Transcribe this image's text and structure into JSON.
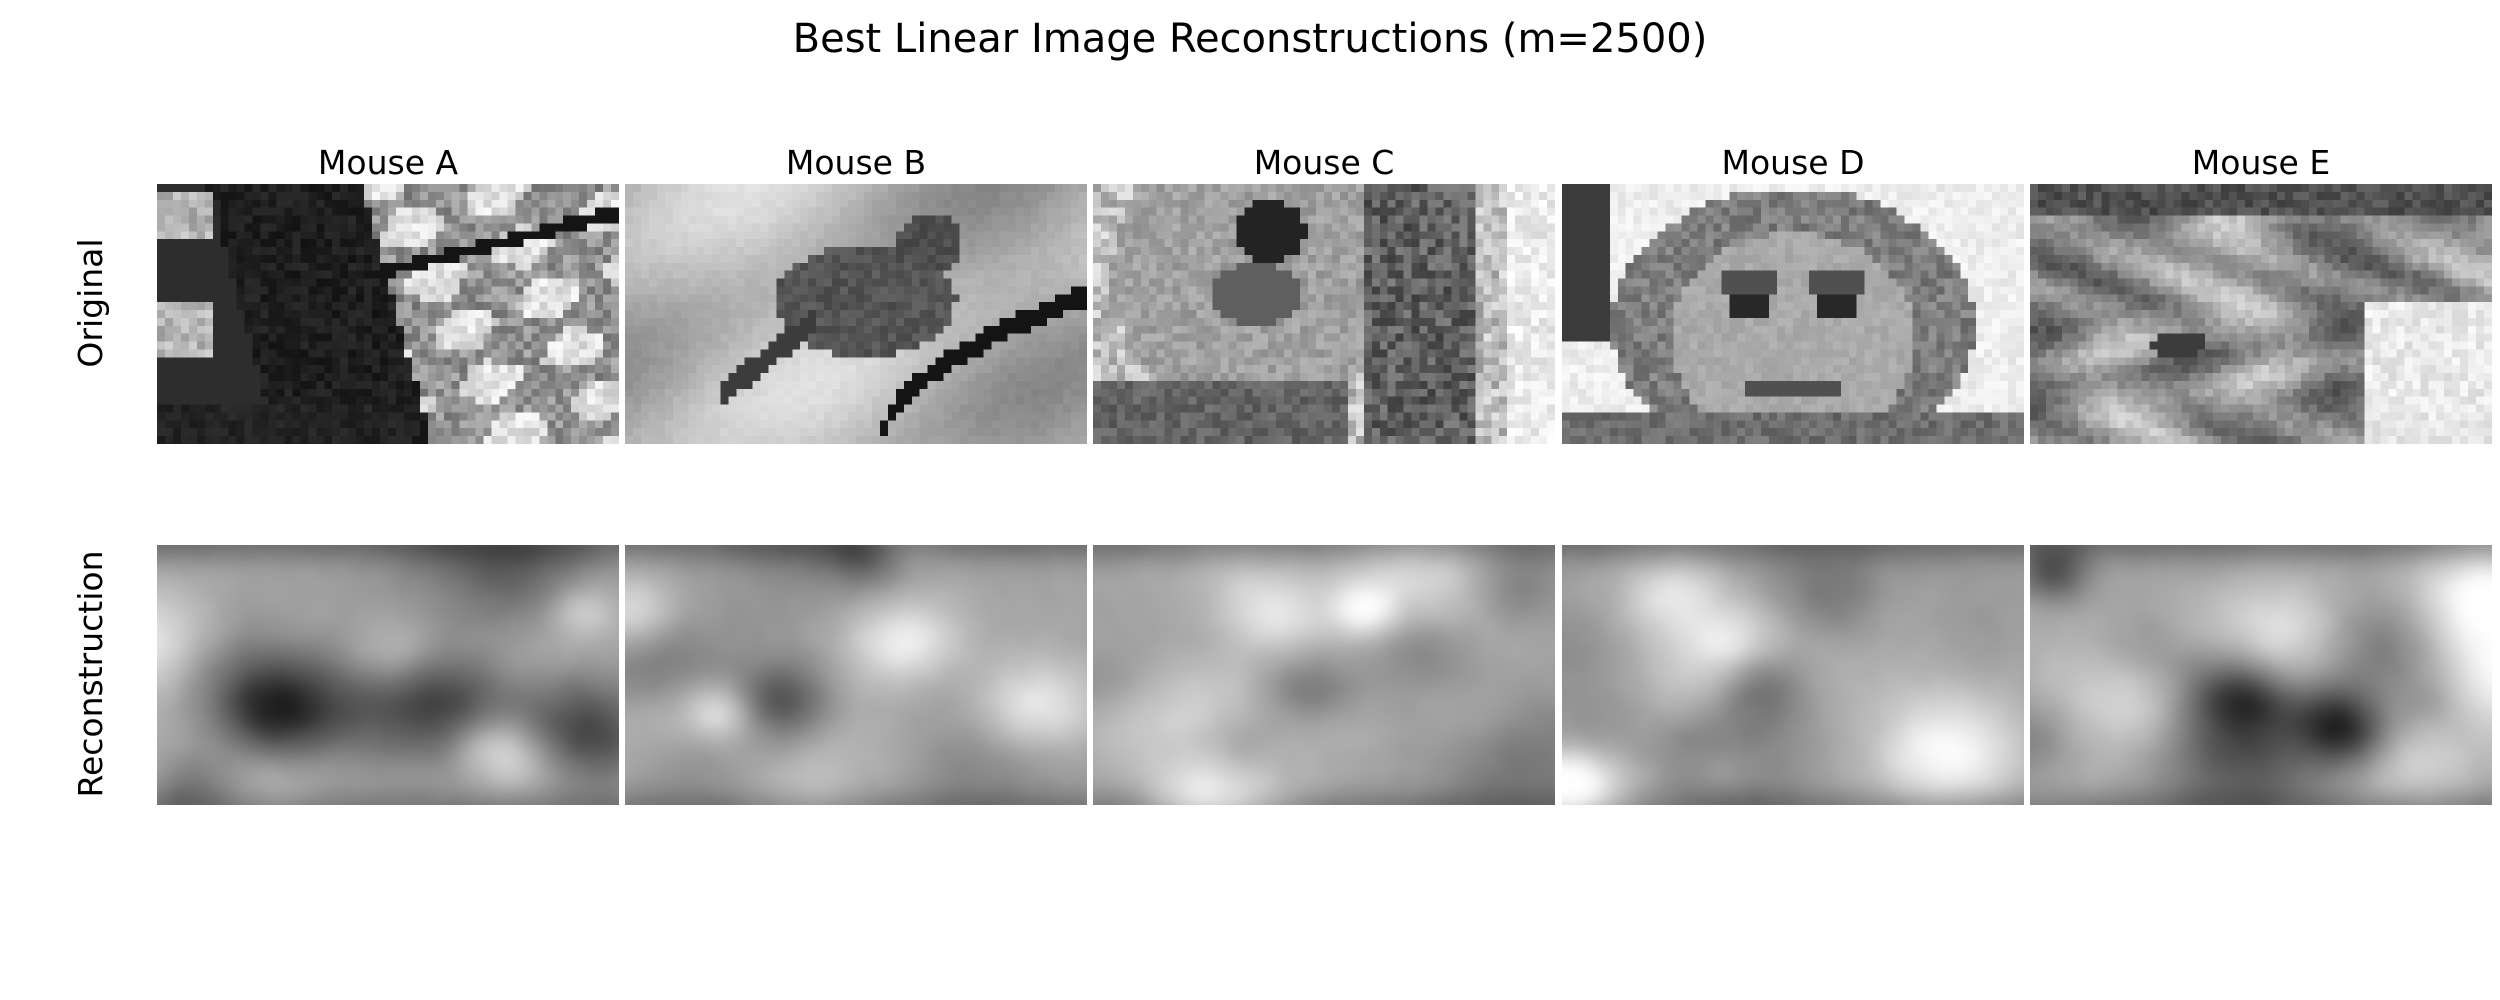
{
  "figure": {
    "title": "Best Linear Image Reconstructions (m=2500)"
  },
  "rows": [
    {
      "label": "Original"
    },
    {
      "label": "Reconstruction"
    }
  ],
  "columns": [
    {
      "label": "Mouse A",
      "original": "tree-branches-scene",
      "reconstruction": "blurred-grayscale-map"
    },
    {
      "label": "Mouse B",
      "original": "bird-on-branch-scene",
      "reconstruction": "blurred-grayscale-map"
    },
    {
      "label": "Mouse C",
      "original": "koala-scene",
      "reconstruction": "blurred-grayscale-map"
    },
    {
      "label": "Mouse D",
      "original": "child-in-hood-portrait",
      "reconstruction": "blurred-grayscale-map"
    },
    {
      "label": "Mouse E",
      "original": "animal-fur-close-up",
      "reconstruction": "blurred-grayscale-map"
    }
  ],
  "colors": {
    "background": "#ffffff",
    "text": "#000000",
    "colormap": "grayscale"
  }
}
